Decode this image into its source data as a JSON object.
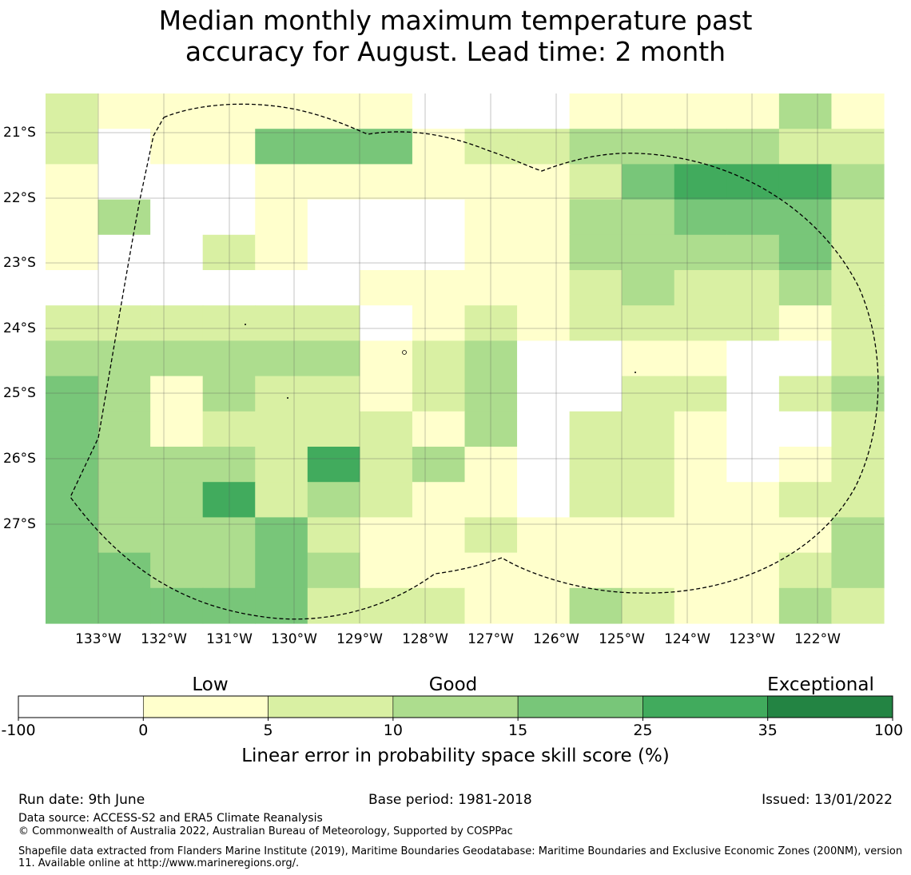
{
  "title_line1": "Median monthly maximum temperature past",
  "title_line2": "accuracy for August. Lead time: 2 month",
  "map": {
    "lon_labels": [
      "133°W",
      "132°W",
      "131°W",
      "130°W",
      "129°W",
      "128°W",
      "127°W",
      "126°W",
      "125°W",
      "124°W",
      "123°W",
      "122°W"
    ],
    "lat_labels": [
      "21°S",
      "22°S",
      "23°S",
      "24°S",
      "25°S",
      "26°S",
      "27°S"
    ],
    "grid_columns": 16,
    "grid_rows": 15,
    "cell_levels": [
      "2111111000111131",
      "2011444122333322",
      "1000111111245553",
      "1300100011334442",
      "1002100011333342",
      "0000001111232232",
      "2222220121222212",
      "3333331230011002",
      "4313221230022023",
      "4312222130221002",
      "4333252310221012",
      "4335232110221122",
      "4333421121111113",
      "4433431111111123",
      "4444422211321132"
    ],
    "boundary": "dashed",
    "colors": {
      "0": "#ffffff",
      "1": "#ffffcc",
      "2": "#d9f0a3",
      "3": "#addd8e",
      "4": "#78c679",
      "5": "#41ab5d",
      "6": "#238443"
    }
  },
  "legend": {
    "categories": [
      "Low",
      "Good",
      "Exceptional"
    ],
    "ticks": [
      "-100",
      "0",
      "5",
      "10",
      "15",
      "25",
      "35",
      "100"
    ],
    "colors": [
      "#ffffff",
      "#ffffcc",
      "#d9f0a3",
      "#addd8e",
      "#78c679",
      "#41ab5d",
      "#238443"
    ],
    "title": "Linear error in probability space skill score (%)"
  },
  "footer": {
    "run_date": "Run date: 9th June",
    "base_period": "Base period: 1981-2018",
    "issued": "Issued: 13/01/2022",
    "data_source": "Data source: ACCESS-S2 and ERA5 Climate Reanalysis",
    "copyright": "© Commonwealth of Australia 2022, Australian Bureau of Meteorology, Supported by COSPPac",
    "shapefile": "Shapefile data extracted from Flanders Marine Institute (2019), Maritime Boundaries Geodatabase: Maritime Boundaries and Exclusive Economic Zones (200NM), version 11. Available online at http://www.marineregions.org/."
  }
}
